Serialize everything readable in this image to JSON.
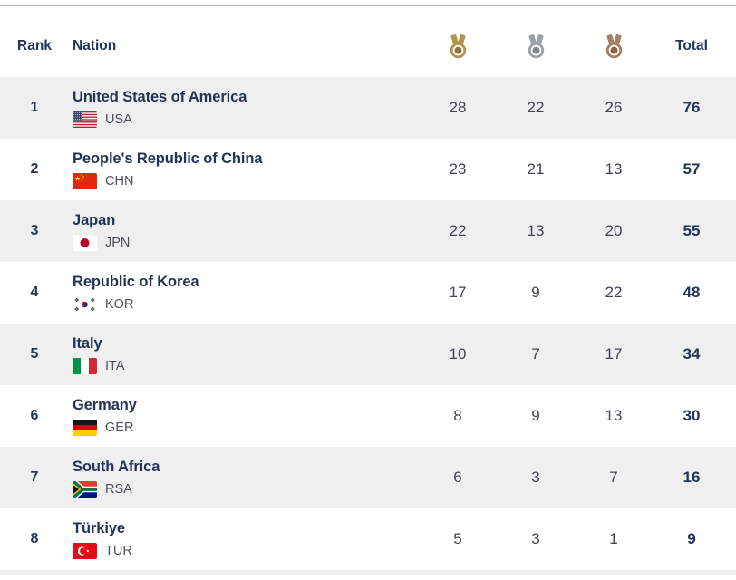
{
  "header": {
    "rank_label": "Rank",
    "nation_label": "Nation",
    "total_label": "Total",
    "medal_columns": [
      {
        "id": "gold",
        "icon": "gold-medal-icon",
        "color": "#b3964e",
        "dark": "#8a7440"
      },
      {
        "id": "silver",
        "icon": "silver-medal-icon",
        "color": "#9aa1a9",
        "dark": "#7f868f"
      },
      {
        "id": "bronze",
        "icon": "bronze-medal-icon",
        "color": "#a87e62",
        "dark": "#8a624b"
      }
    ]
  },
  "rows": [
    {
      "rank": "1",
      "nation": "United States of America",
      "code": "USA",
      "gold": "28",
      "silver": "22",
      "bronze": "26",
      "total": "76"
    },
    {
      "rank": "2",
      "nation": "People's Republic of China",
      "code": "CHN",
      "gold": "23",
      "silver": "21",
      "bronze": "13",
      "total": "57"
    },
    {
      "rank": "3",
      "nation": "Japan",
      "code": "JPN",
      "gold": "22",
      "silver": "13",
      "bronze": "20",
      "total": "55"
    },
    {
      "rank": "4",
      "nation": "Republic of Korea",
      "code": "KOR",
      "gold": "17",
      "silver": "9",
      "bronze": "22",
      "total": "48"
    },
    {
      "rank": "5",
      "nation": "Italy",
      "code": "ITA",
      "gold": "10",
      "silver": "7",
      "bronze": "17",
      "total": "34"
    },
    {
      "rank": "6",
      "nation": "Germany",
      "code": "GER",
      "gold": "8",
      "silver": "9",
      "bronze": "13",
      "total": "30"
    },
    {
      "rank": "7",
      "nation": "South Africa",
      "code": "RSA",
      "gold": "6",
      "silver": "3",
      "bronze": "7",
      "total": "16"
    },
    {
      "rank": "8",
      "nation": "Türkiye",
      "code": "TUR",
      "gold": "5",
      "silver": "3",
      "bronze": "1",
      "total": "9"
    }
  ],
  "colors": {
    "row_alt_background": "#efefef",
    "navy_text": "#24335a",
    "count_text": "#3e4553",
    "code_text": "#4b515c",
    "top_line": "#b9b9b9"
  }
}
